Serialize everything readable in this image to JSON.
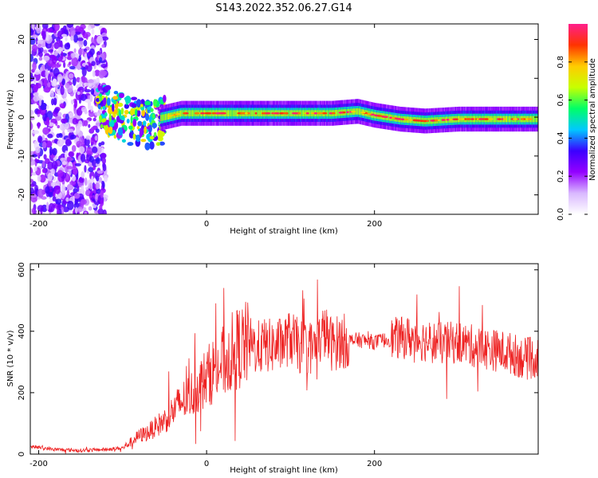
{
  "chart_data": [
    {
      "type": "heatmap",
      "title": "S143.2022.352.06.27.G14",
      "xlabel": "Height of straight line (km)",
      "ylabel": "Frequency (Hz)",
      "xlim": [
        -210,
        395
      ],
      "ylim": [
        -25,
        24
      ],
      "x_ticks": [
        -200,
        0,
        200
      ],
      "y_ticks": [
        -20,
        -10,
        0,
        10,
        20
      ],
      "colorbar": {
        "label": "Normalized spectral amplitude",
        "range": [
          0,
          1
        ],
        "ticks": [
          0.0,
          0.2,
          0.4,
          0.6,
          0.8
        ],
        "colormap": [
          "#ffffff",
          "#d9b8ff",
          "#9400ff",
          "#3b00ff",
          "#00c8ff",
          "#00ff66",
          "#c8ff00",
          "#ffcc00",
          "#ff3300",
          "#ff1f8c"
        ]
      },
      "ridge": {
        "x": [
          -130,
          -110,
          -90,
          -70,
          -50,
          -30,
          0,
          50,
          100,
          150,
          180,
          200,
          230,
          260,
          300,
          350,
          395
        ],
        "frequency": [
          4,
          2,
          0,
          -1,
          0,
          1,
          1,
          1,
          1,
          1,
          1.5,
          0.5,
          -0.5,
          -1,
          -0.5,
          -0.5,
          -0.5
        ]
      },
      "grid": false
    },
    {
      "type": "line",
      "xlabel": "Height of straight line (km)",
      "ylabel": "SNR (10 * v/v)",
      "xlim": [
        -210,
        395
      ],
      "ylim": [
        0,
        620
      ],
      "x_ticks": [
        -200,
        0,
        200
      ],
      "y_ticks": [
        0,
        200,
        400,
        600
      ],
      "color": "#ee2222",
      "series": [
        {
          "x": [
            -210,
            -180,
            -150,
            -120,
            -100,
            -90,
            -80,
            -70,
            -60,
            -50,
            -40,
            -30,
            -20,
            -10,
            0,
            10,
            20,
            30,
            40,
            50,
            60,
            70,
            80,
            90,
            100,
            110,
            120,
            130,
            140,
            150,
            160,
            170,
            180,
            200,
            220,
            240,
            260,
            280,
            300,
            320,
            340,
            360,
            380,
            395
          ],
          "values": [
            25,
            15,
            12,
            15,
            20,
            40,
            60,
            70,
            90,
            110,
            140,
            170,
            190,
            220,
            250,
            280,
            300,
            330,
            350,
            360,
            345,
            355,
            350,
            360,
            380,
            350,
            345,
            350,
            400,
            355,
            370,
            368,
            372,
            365,
            375,
            380,
            370,
            360,
            365,
            350,
            340,
            330,
            310,
            315
          ]
        }
      ],
      "grid": false
    }
  ]
}
